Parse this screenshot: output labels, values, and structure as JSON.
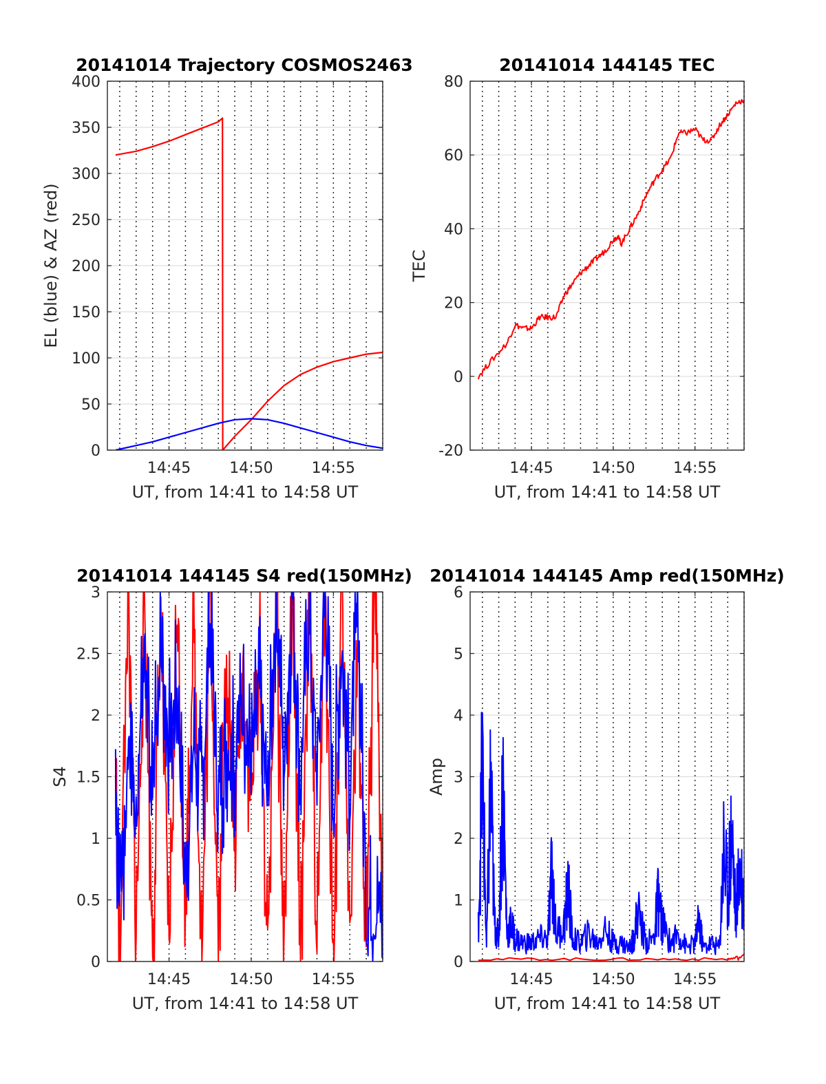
{
  "figure": {
    "panels": [
      {
        "id": "trajectory",
        "title": "20141014 Trajectory COSMOS2463",
        "xlabel": "UT, from 14:41 to 14:58 UT",
        "ylabel": "EL (blue) & AZ (red)"
      },
      {
        "id": "tec",
        "title": "20141014 144145 TEC",
        "xlabel": "UT, from 14:41 to 14:58 UT",
        "ylabel": "TEC"
      },
      {
        "id": "s4",
        "title": "20141014 144145 S4 red(150MHz)",
        "xlabel": "UT, from 14:41 to 14:58 UT",
        "ylabel": "S4"
      },
      {
        "id": "amp",
        "title": "20141014 144145 Amp red(150MHz)",
        "xlabel": "UT, from 14:41 to 14:58 UT",
        "ylabel": "Amp"
      }
    ]
  },
  "chart_data": [
    {
      "type": "line",
      "title": "20141014 Trajectory COSMOS2463",
      "xlabel": "UT, from 14:41 to 14:58 UT",
      "ylabel": "EL (blue) & AZ (red)",
      "xlim": [
        "14:41:15",
        "14:58:00"
      ],
      "ylim": [
        0,
        400
      ],
      "xticks": [
        "14:45",
        "14:50",
        "14:55"
      ],
      "yticks": [
        0,
        50,
        100,
        150,
        200,
        250,
        300,
        350,
        400
      ],
      "grid": "horizontal solid, vertical dotted every minute",
      "series": [
        {
          "color": "#ff0000",
          "x": [
            "14:41:45",
            "14:43:00",
            "14:44:00",
            "14:45:00",
            "14:46:00",
            "14:47:00",
            "14:48:00",
            "14:48:15",
            "14:48:16",
            "14:49:00",
            "14:50:00",
            "14:51:00",
            "14:52:00",
            "14:53:00",
            "14:54:00",
            "14:55:00",
            "14:56:00",
            "14:57:00",
            "14:58:00"
          ],
          "values": [
            320,
            324,
            329,
            335,
            342,
            349,
            356,
            360,
            0,
            15,
            33,
            53,
            70,
            82,
            90,
            96,
            100,
            104,
            106
          ]
        },
        {
          "color": "#0000ff",
          "x": [
            "14:41:45",
            "14:43:00",
            "14:44:00",
            "14:45:00",
            "14:46:00",
            "14:47:00",
            "14:48:00",
            "14:49:00",
            "14:50:00",
            "14:51:00",
            "14:52:00",
            "14:53:00",
            "14:54:00",
            "14:55:00",
            "14:56:00",
            "14:57:00",
            "14:58:00"
          ],
          "values": [
            0,
            5,
            9,
            14,
            19,
            24,
            29,
            33,
            34,
            33,
            29,
            24,
            19,
            14,
            9,
            5,
            2
          ]
        }
      ]
    },
    {
      "type": "line",
      "title": "20141014 144145 TEC",
      "xlabel": "UT, from 14:41 to 14:58 UT",
      "ylabel": "TEC",
      "xlim": [
        "14:41:15",
        "14:58:00"
      ],
      "ylim": [
        -20,
        80
      ],
      "xticks": [
        "14:45",
        "14:50",
        "14:55"
      ],
      "yticks": [
        -20,
        0,
        20,
        40,
        60,
        80
      ],
      "grid": "horizontal solid, vertical dotted every minute",
      "series": [
        {
          "color": "#ff0000",
          "x": [
            "14:41:45",
            "14:42:30",
            "14:43:30",
            "14:44:00",
            "14:44:30",
            "14:45:00",
            "14:45:30",
            "14:46:00",
            "14:46:30",
            "14:47:00",
            "14:47:30",
            "14:48:00",
            "14:48:30",
            "14:49:00",
            "14:49:30",
            "14:50:00",
            "14:50:15",
            "14:50:30",
            "14:51:00",
            "14:51:30",
            "14:52:00",
            "14:52:30",
            "14:53:00",
            "14:53:30",
            "14:54:00",
            "14:54:30",
            "14:55:00",
            "14:55:30",
            "14:56:00",
            "14:56:30",
            "14:57:00",
            "14:57:30",
            "14:58:00"
          ],
          "values": [
            0,
            4,
            9,
            14,
            13,
            13,
            16,
            16,
            16,
            22,
            25,
            28,
            30,
            32,
            34,
            37,
            38,
            36,
            40,
            44,
            49,
            53,
            56,
            59,
            66,
            66,
            67,
            64,
            64,
            68,
            71,
            74,
            75
          ]
        }
      ]
    },
    {
      "type": "line",
      "title": "20141014 144145 S4 red(150MHz)",
      "xlabel": "UT, from 14:41 to 14:58 UT",
      "ylabel": "S4",
      "xlim": [
        "14:41:15",
        "14:58:00"
      ],
      "ylim": [
        0,
        3
      ],
      "xticks": [
        "14:45",
        "14:50",
        "14:55"
      ],
      "yticks": [
        0,
        0.5,
        1,
        1.5,
        2,
        2.5,
        3
      ],
      "grid": "horizontal solid, vertical dotted every minute",
      "series": [
        {
          "color": "#ff0000",
          "x": [
            "14:41:45",
            "14:42:00",
            "14:42:30",
            "14:43:00",
            "14:43:30",
            "14:44:00",
            "14:44:30",
            "14:45:00",
            "14:45:30",
            "14:46:00",
            "14:46:30",
            "14:47:00",
            "14:47:30",
            "14:48:00",
            "14:48:30",
            "14:49:00",
            "14:49:30",
            "14:50:00",
            "14:50:30",
            "14:51:00",
            "14:51:30",
            "14:52:00",
            "14:52:30",
            "14:53:00",
            "14:53:30",
            "14:54:00",
            "14:54:30",
            "14:55:00",
            "14:55:30",
            "14:56:00",
            "14:56:30",
            "14:57:00",
            "14:57:30",
            "14:58:00"
          ],
          "values": [
            1.5,
            0,
            3,
            0.2,
            3,
            0.1,
            2.8,
            0,
            3,
            0.3,
            2.9,
            0,
            3,
            0.2,
            2.6,
            1.0,
            2.4,
            1.3,
            2.5,
            0,
            3,
            0.1,
            3,
            0,
            3,
            0.2,
            3,
            0,
            3,
            0.3,
            2.5,
            0,
            3,
            0.4
          ]
        },
        {
          "color": "#0000ff",
          "x": [
            "14:41:45",
            "14:42:00",
            "14:42:30",
            "14:43:00",
            "14:43:30",
            "14:44:00",
            "14:44:30",
            "14:45:00",
            "14:45:30",
            "14:46:00",
            "14:46:30",
            "14:47:00",
            "14:47:30",
            "14:48:00",
            "14:48:30",
            "14:49:00",
            "14:49:30",
            "14:50:00",
            "14:50:30",
            "14:51:00",
            "14:51:30",
            "14:52:00",
            "14:52:30",
            "14:53:00",
            "14:53:30",
            "14:54:00",
            "14:54:30",
            "14:55:00",
            "14:55:30",
            "14:56:00",
            "14:56:30",
            "14:57:00",
            "14:57:30",
            "14:58:00"
          ],
          "values": [
            1.5,
            0.45,
            1.6,
            1.2,
            2.4,
            1.3,
            2.6,
            1.8,
            2.2,
            0.7,
            1.8,
            1.4,
            2.7,
            1.3,
            1.8,
            1.6,
            2.1,
            1.6,
            2.2,
            1.3,
            3,
            1.6,
            3,
            1.5,
            2.8,
            1.5,
            3,
            1.3,
            2.6,
            1.4,
            2.9,
            0.4,
            0.45,
            0.4
          ]
        }
      ]
    },
    {
      "type": "line",
      "title": "20141014 144145 Amp red(150MHz)",
      "xlabel": "UT, from 14:41 to 14:58 UT",
      "ylabel": "Amp",
      "xlim": [
        "14:41:15",
        "14:58:00"
      ],
      "ylim": [
        0,
        6
      ],
      "xticks": [
        "14:45",
        "14:50",
        "14:55"
      ],
      "yticks": [
        0,
        1,
        2,
        3,
        4,
        5,
        6
      ],
      "grid": "horizontal solid, vertical dotted every minute",
      "series": [
        {
          "color": "#ff0000",
          "x": [
            "14:41:45",
            "14:47:00",
            "14:52:00",
            "14:57:00",
            "14:58:00"
          ],
          "values": [
            0.05,
            0.05,
            0.05,
            0.05,
            0.1
          ]
        },
        {
          "color": "#0000ff",
          "x": [
            "14:41:45",
            "14:42:00",
            "14:42:15",
            "14:42:30",
            "14:42:45",
            "14:43:00",
            "14:43:15",
            "14:43:30",
            "14:43:45",
            "14:44:00",
            "14:44:30",
            "14:45:00",
            "14:45:30",
            "14:46:00",
            "14:46:15",
            "14:46:30",
            "14:47:00",
            "14:47:15",
            "14:47:30",
            "14:48:00",
            "14:48:30",
            "14:49:00",
            "14:49:30",
            "14:50:00",
            "14:50:30",
            "14:51:00",
            "14:51:15",
            "14:51:30",
            "14:52:00",
            "14:52:30",
            "14:52:45",
            "14:53:00",
            "14:53:30",
            "14:54:00",
            "14:54:30",
            "14:55:00",
            "14:55:15",
            "14:55:30",
            "14:56:00",
            "14:56:30",
            "14:56:45",
            "14:57:00",
            "14:57:15",
            "14:57:30",
            "14:57:45",
            "14:58:00"
          ],
          "values": [
            0.8,
            4.2,
            0.3,
            3.8,
            0.8,
            0.5,
            3.9,
            0.6,
            0.8,
            0.5,
            0.4,
            0.4,
            0.5,
            0.5,
            2.0,
            0.6,
            0.8,
            1.6,
            0.5,
            0.4,
            0.6,
            0.4,
            0.7,
            0.4,
            0.4,
            0.3,
            0.5,
            1.1,
            0.4,
            0.5,
            1.4,
            0.8,
            0.4,
            0.6,
            0.3,
            0.4,
            0.9,
            0.3,
            0.4,
            0.3,
            2.5,
            1.5,
            2.9,
            1.0,
            2.2,
            1.2
          ]
        }
      ]
    }
  ]
}
